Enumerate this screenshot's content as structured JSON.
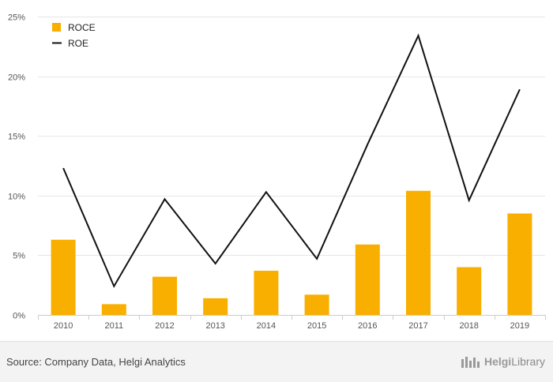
{
  "colors": {
    "roce": "#F9AF00",
    "roe": "#111111",
    "grid": "#e6e6e6",
    "axis": "#cccccc"
  },
  "chart_data": {
    "type": "bar",
    "categories": [
      "2010",
      "2011",
      "2012",
      "2013",
      "2014",
      "2015",
      "2016",
      "2017",
      "2018",
      "2019"
    ],
    "series": [
      {
        "name": "ROCE",
        "type": "bar",
        "values": [
          6.3,
          0.9,
          3.2,
          1.4,
          3.7,
          1.7,
          5.9,
          10.4,
          4.0,
          8.5
        ]
      },
      {
        "name": "ROE",
        "type": "line",
        "values": [
          12.3,
          2.4,
          9.7,
          4.3,
          10.3,
          4.7,
          14.3,
          23.4,
          9.6,
          18.9
        ]
      }
    ],
    "ylim": [
      0,
      25
    ],
    "yticks": [
      0,
      5,
      10,
      15,
      20,
      25
    ],
    "ytick_labels": [
      "0%",
      "5%",
      "10%",
      "15%",
      "20%",
      "25%"
    ],
    "grid": true,
    "legend": "top-left"
  },
  "footer": {
    "source": "Source: Company Data, Helgi Analytics",
    "brand_a": "Helgi",
    "brand_b": "Library"
  }
}
